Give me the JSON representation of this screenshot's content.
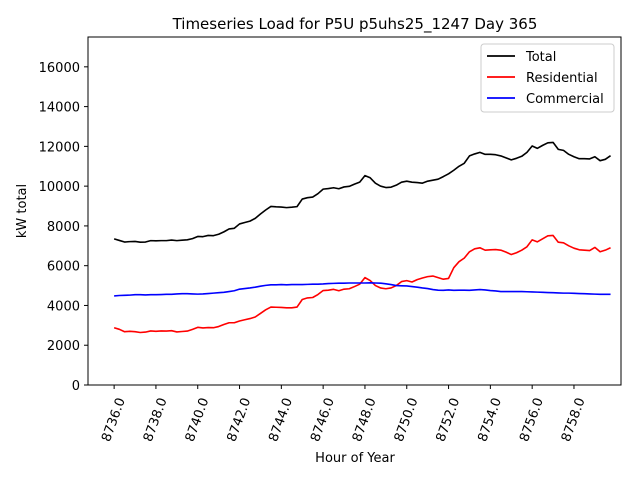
{
  "chart_data": {
    "type": "line",
    "title": "Timeseries Load for P5U p5uhs25_1247  Day 365",
    "xlabel": "Hour of Year",
    "ylabel": "kW total",
    "xlim": [
      8734.75,
      8760.25
    ],
    "ylim": [
      0,
      17500
    ],
    "xticks": [
      8736,
      8738,
      8740,
      8742,
      8744,
      8746,
      8748,
      8750,
      8752,
      8754,
      8756,
      8758
    ],
    "xtick_labels": [
      "8736.0",
      "8738.0",
      "8740.0",
      "8742.0",
      "8744.0",
      "8746.0",
      "8748.0",
      "8750.0",
      "8752.0",
      "8754.0",
      "8756.0",
      "8758.0"
    ],
    "yticks": [
      0,
      2000,
      4000,
      6000,
      8000,
      10000,
      12000,
      14000,
      16000
    ],
    "ytick_labels": [
      "0",
      "2000",
      "4000",
      "6000",
      "8000",
      "10000",
      "12000",
      "14000",
      "16000"
    ],
    "grid": false,
    "legend_position": "top-right",
    "x": [
      8736.0,
      8736.25,
      8736.5,
      8736.75,
      8737.0,
      8737.25,
      8737.5,
      8737.75,
      8738.0,
      8738.25,
      8738.5,
      8738.75,
      8739.0,
      8739.25,
      8739.5,
      8739.75,
      8740.0,
      8740.25,
      8740.5,
      8740.75,
      8741.0,
      8741.25,
      8741.5,
      8741.75,
      8742.0,
      8742.25,
      8742.5,
      8742.75,
      8743.0,
      8743.25,
      8743.5,
      8743.75,
      8744.0,
      8744.25,
      8744.5,
      8744.75,
      8745.0,
      8745.25,
      8745.5,
      8745.75,
      8746.0,
      8746.25,
      8746.5,
      8746.75,
      8747.0,
      8747.25,
      8747.5,
      8747.75,
      8748.0,
      8748.25,
      8748.5,
      8748.75,
      8749.0,
      8749.25,
      8749.5,
      8749.75,
      8750.0,
      8750.25,
      8750.5,
      8750.75,
      8751.0,
      8751.25,
      8751.5,
      8751.75,
      8752.0,
      8752.25,
      8752.5,
      8752.75,
      8753.0,
      8753.25,
      8753.5,
      8753.75,
      8754.0,
      8754.25,
      8754.5,
      8754.75,
      8755.0,
      8755.25,
      8755.5,
      8755.75,
      8756.0,
      8756.25,
      8756.5,
      8756.75,
      8757.0,
      8757.25,
      8757.5,
      8757.75,
      8758.0,
      8758.25,
      8758.5,
      8758.75,
      8759.0,
      8759.25,
      8759.5,
      8759.75
    ],
    "series": [
      {
        "name": "Total",
        "color": "#000000",
        "values": [
          7350,
          7270,
          7190,
          7210,
          7220,
          7180,
          7190,
          7260,
          7250,
          7260,
          7260,
          7290,
          7260,
          7280,
          7300,
          7360,
          7470,
          7460,
          7520,
          7510,
          7580,
          7700,
          7850,
          7880,
          8100,
          8170,
          8240,
          8380,
          8600,
          8800,
          8980,
          8960,
          8950,
          8920,
          8940,
          8970,
          9350,
          9420,
          9450,
          9620,
          9850,
          9880,
          9920,
          9870,
          9960,
          9990,
          10100,
          10200,
          10530,
          10420,
          10150,
          10000,
          9930,
          9950,
          10050,
          10200,
          10250,
          10200,
          10180,
          10150,
          10250,
          10300,
          10350,
          10480,
          10620,
          10800,
          11000,
          11150,
          11520,
          11620,
          11700,
          11600,
          11600,
          11580,
          11520,
          11420,
          11320,
          11400,
          11500,
          11700,
          12020,
          11900,
          12050,
          12180,
          12200,
          11850,
          11800,
          11600,
          11480,
          11380,
          11380,
          11370,
          11480,
          11280,
          11350,
          11530
        ]
      },
      {
        "name": "Residential",
        "color": "#ff0000",
        "values": [
          2880,
          2800,
          2680,
          2700,
          2680,
          2640,
          2660,
          2720,
          2700,
          2720,
          2710,
          2730,
          2670,
          2690,
          2710,
          2800,
          2900,
          2870,
          2890,
          2880,
          2940,
          3040,
          3130,
          3130,
          3220,
          3280,
          3340,
          3420,
          3600,
          3780,
          3920,
          3910,
          3900,
          3880,
          3880,
          3920,
          4300,
          4380,
          4400,
          4550,
          4750,
          4770,
          4810,
          4740,
          4820,
          4840,
          4950,
          5070,
          5400,
          5250,
          5000,
          4880,
          4840,
          4880,
          5000,
          5200,
          5250,
          5180,
          5300,
          5380,
          5450,
          5480,
          5400,
          5320,
          5360,
          5900,
          6200,
          6380,
          6700,
          6850,
          6900,
          6780,
          6800,
          6810,
          6780,
          6680,
          6560,
          6650,
          6780,
          6950,
          7300,
          7200,
          7350,
          7500,
          7520,
          7180,
          7150,
          7000,
          6880,
          6800,
          6780,
          6760,
          6920,
          6700,
          6780,
          6900
        ]
      },
      {
        "name": "Commercial",
        "color": "#0000ff",
        "values": [
          4480,
          4500,
          4510,
          4520,
          4540,
          4540,
          4530,
          4540,
          4540,
          4550,
          4560,
          4560,
          4580,
          4590,
          4590,
          4580,
          4570,
          4580,
          4600,
          4620,
          4640,
          4660,
          4700,
          4740,
          4820,
          4850,
          4880,
          4920,
          4970,
          5010,
          5040,
          5040,
          5050,
          5040,
          5050,
          5050,
          5050,
          5060,
          5070,
          5070,
          5080,
          5100,
          5110,
          5120,
          5120,
          5130,
          5130,
          5130,
          5130,
          5140,
          5130,
          5120,
          5090,
          5050,
          5000,
          4990,
          4980,
          4950,
          4920,
          4880,
          4850,
          4800,
          4770,
          4760,
          4780,
          4760,
          4770,
          4770,
          4760,
          4780,
          4800,
          4780,
          4750,
          4730,
          4700,
          4700,
          4700,
          4700,
          4700,
          4690,
          4680,
          4670,
          4660,
          4650,
          4640,
          4630,
          4620,
          4620,
          4610,
          4600,
          4590,
          4580,
          4570,
          4560,
          4560,
          4560
        ]
      }
    ]
  }
}
